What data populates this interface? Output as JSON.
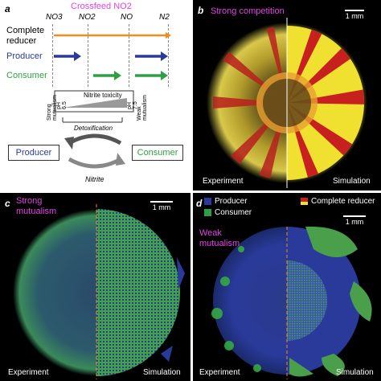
{
  "panel_a": {
    "letter": "a",
    "title": "Crossfeed NO2",
    "nitrogen": [
      "NO3",
      "NO2",
      "NO",
      "N2"
    ],
    "rows": [
      "Complete reducer",
      "Producer",
      "Consumer"
    ],
    "toxicity_title": "Nitrite toxicity",
    "left_side": "Strong mutualism",
    "right_side": "Weak mutualism",
    "ph_low": "pH 6.5",
    "ph_high": "pH 7.5",
    "detox": "Detoxification",
    "box_left": "Producer",
    "box_right": "Consumer",
    "cycle_label": "Nitrite"
  },
  "panel_b": {
    "letter": "b",
    "title": "Strong competition",
    "scale": "1 mm",
    "left": "Experiment",
    "right": "Simulation"
  },
  "panel_c": {
    "letter": "c",
    "title": "Strong mutualism",
    "scale": "1 mm",
    "left": "Experiment",
    "right": "Simulation"
  },
  "panel_d": {
    "letter": "d",
    "title": "Weak mutualism",
    "scale": "1 mm",
    "left": "Experiment",
    "right": "Simulation",
    "legend": [
      "Producer",
      "Consumer",
      "Complete reducer"
    ]
  },
  "colors": {
    "producer": "#2a3a9a",
    "consumer": "#2ea043",
    "reducer_orange": "#f28c1a",
    "magenta": "#e640e6",
    "red": "#c8201e",
    "yellow": "#f0e130"
  }
}
